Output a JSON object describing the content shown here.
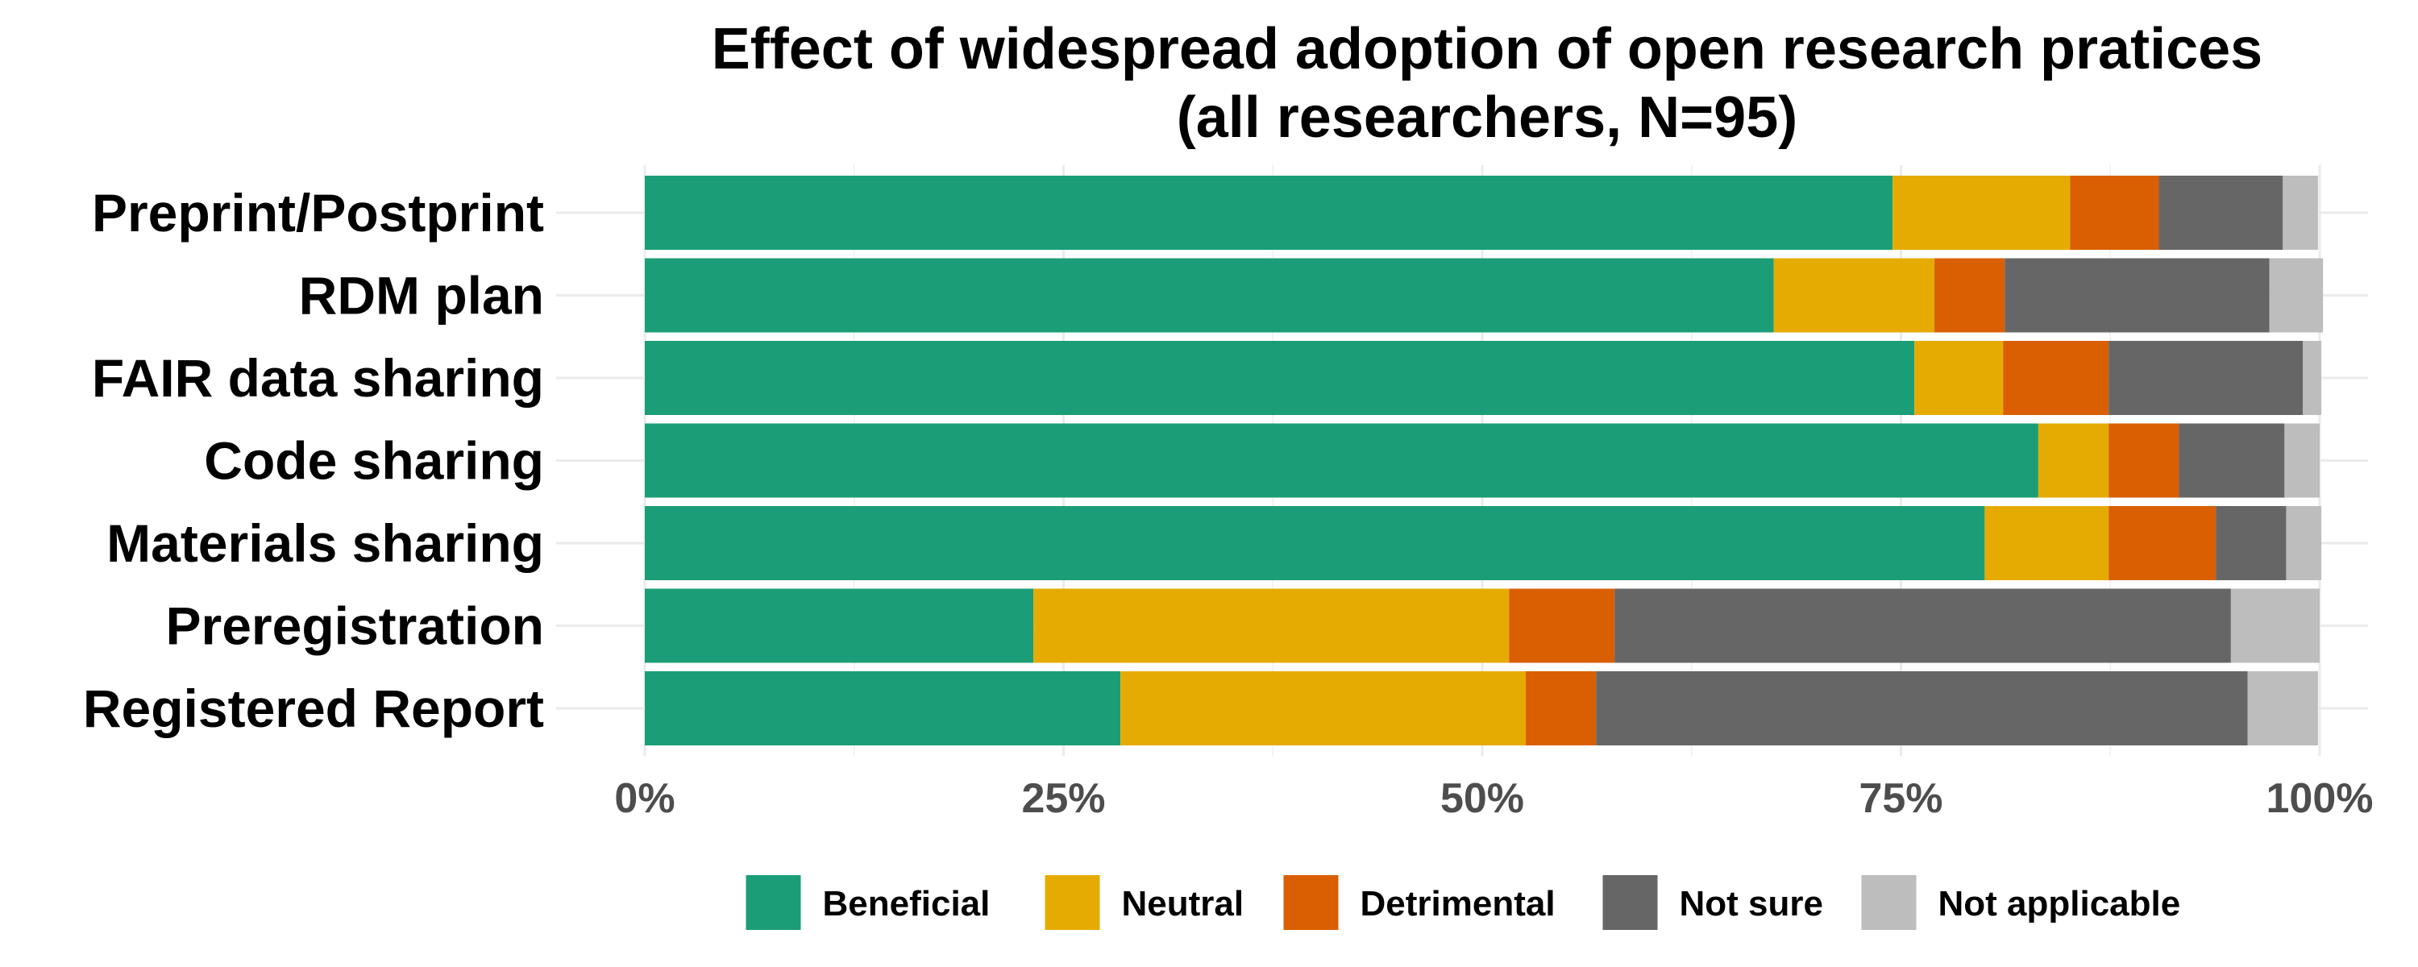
{
  "chart_data": {
    "type": "bar",
    "orientation": "horizontal",
    "stacked": true,
    "title": "Effect of widespread adoption of open research pratices",
    "subtitle": "(all researchers, N=95)",
    "xlabel": "",
    "ylabel": "",
    "xlim": [
      0,
      1
    ],
    "x_ticks": [
      "0%",
      "25%",
      "50%",
      "75%",
      "100%"
    ],
    "x_tick_values": [
      0,
      0.25,
      0.5,
      0.75,
      1.0
    ],
    "grid": true,
    "legend_position": "bottom",
    "categories": [
      "Preprint/Postprint",
      "RDM plan",
      "FAIR data sharing",
      "Code sharing",
      "Materials sharing",
      "Preregistration",
      "Registered Report"
    ],
    "series": [
      {
        "name": "Beneficial",
        "color": "#1b9e77",
        "values": [
          0.745,
          0.674,
          0.758,
          0.832,
          0.8,
          0.232,
          0.284
        ]
      },
      {
        "name": "Neutral",
        "color": "#e6ab02",
        "values": [
          0.106,
          0.096,
          0.053,
          0.042,
          0.074,
          0.284,
          0.242
        ]
      },
      {
        "name": "Detrimental",
        "color": "#d95f02",
        "values": [
          0.053,
          0.042,
          0.063,
          0.042,
          0.064,
          0.063,
          0.042
        ]
      },
      {
        "name": "Not sure",
        "color": "#666666",
        "values": [
          0.074,
          0.158,
          0.116,
          0.063,
          0.042,
          0.368,
          0.389
        ]
      },
      {
        "name": "Not applicable",
        "color": "#bdbdbd",
        "values": [
          0.021,
          0.032,
          0.011,
          0.021,
          0.021,
          0.053,
          0.042
        ]
      }
    ]
  }
}
